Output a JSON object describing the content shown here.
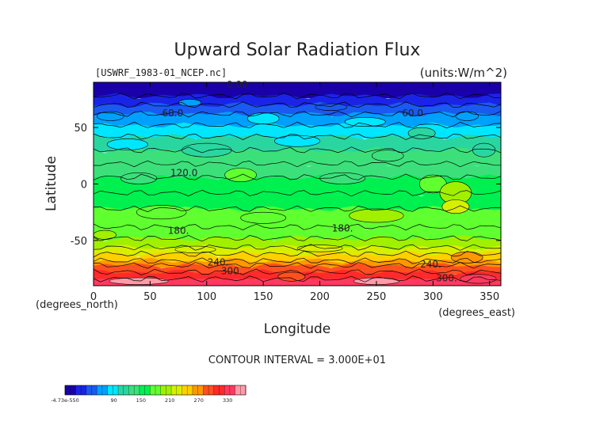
{
  "chart_data": {
    "type": "heatmap",
    "title": "Upward Solar Radiation Flux",
    "file_label": "[USWRF_1983-01_NCEP.nc]",
    "units_label": "(units:W/m^2)",
    "xlabel": "Longitude",
    "ylabel": "Latitude",
    "x_unit_label": "(degrees_east)",
    "y_unit_label": "(degrees_north)",
    "xlim": [
      0,
      360
    ],
    "ylim": [
      -90,
      90
    ],
    "x_ticks": [
      "0",
      "50",
      "100",
      "150",
      "200",
      "250",
      "300",
      "350"
    ],
    "y_ticks": [
      "50",
      "0",
      "-50"
    ],
    "contour_interval_text": "CONTOUR INTERVAL = 3.000E+01",
    "contour_labels": [
      {
        "text": "0.00",
        "lon": 127,
        "lat": 85
      },
      {
        "text": "60.0",
        "lon": 70,
        "lat": 60
      },
      {
        "text": "60.0",
        "lon": 282,
        "lat": 60
      },
      {
        "text": "120.0",
        "lon": 80,
        "lat": 7
      },
      {
        "text": "180.",
        "lon": 75,
        "lat": -44
      },
      {
        "text": "180.",
        "lon": 220,
        "lat": -42
      },
      {
        "text": "240.",
        "lon": 110,
        "lat": -72
      },
      {
        "text": "240.",
        "lon": 298,
        "lat": -74
      },
      {
        "text": "300.",
        "lon": 122,
        "lat": -80
      },
      {
        "text": "300.",
        "lon": 312,
        "lat": -86
      }
    ],
    "colorbar": {
      "tick_labels": [
        "-4.73e-550",
        "90",
        "150",
        "210",
        "270",
        "330"
      ],
      "levels": [
        0,
        330
      ],
      "colors": [
        "#1a00a8",
        "#1a24e6",
        "#1a5af0",
        "#00a0ff",
        "#00e6ff",
        "#2ad6a0",
        "#3ce07a",
        "#00f050",
        "#60ff30",
        "#a0f000",
        "#d8f000",
        "#ffd000",
        "#ff9800",
        "#ff5020",
        "#ff2a2a",
        "#ff3a60",
        "#ff9aa8"
      ]
    }
  }
}
